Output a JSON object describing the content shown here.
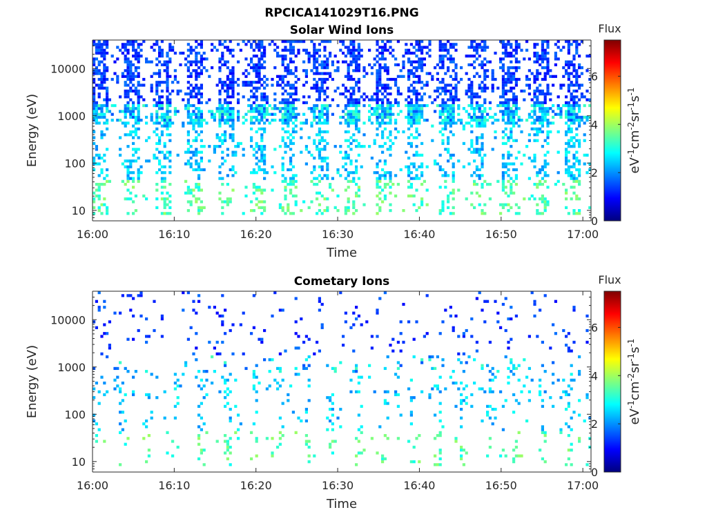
{
  "figure": {
    "title": "RPCICA141029T16.PNG"
  },
  "chart_data": [
    {
      "type": "heatmap",
      "title": "Solar Wind Ions",
      "xlabel": "Time",
      "ylabel": "Energy (eV)",
      "xlim": [
        "16:00",
        "17:01"
      ],
      "ylim": [
        6,
        40000
      ],
      "yscale": "log",
      "x_ticks": [
        "16:00",
        "16:10",
        "16:20",
        "16:30",
        "16:40",
        "16:50",
        "17:00"
      ],
      "y_ticks": [
        "10",
        "100",
        "1000",
        "10000"
      ],
      "colorbar": {
        "label_title": "Flux",
        "label": "eV-1cm-2sr-1s-1",
        "range": [
          0,
          7.5
        ],
        "ticks": [
          "0",
          "2",
          "4",
          "6"
        ]
      },
      "density": "high"
    },
    {
      "type": "heatmap",
      "title": "Cometary Ions",
      "xlabel": "Time",
      "ylabel": "Energy (eV)",
      "xlim": [
        "16:00",
        "17:01"
      ],
      "ylim": [
        6,
        40000
      ],
      "yscale": "log",
      "x_ticks": [
        "16:00",
        "16:10",
        "16:20",
        "16:30",
        "16:40",
        "16:50",
        "17:00"
      ],
      "y_ticks": [
        "10",
        "100",
        "1000",
        "10000"
      ],
      "colorbar": {
        "label_title": "Flux",
        "label": "eV-1cm-2sr-1s-1",
        "range": [
          0,
          7.5
        ],
        "ticks": [
          "0",
          "2",
          "4",
          "6"
        ]
      },
      "density": "low"
    }
  ]
}
